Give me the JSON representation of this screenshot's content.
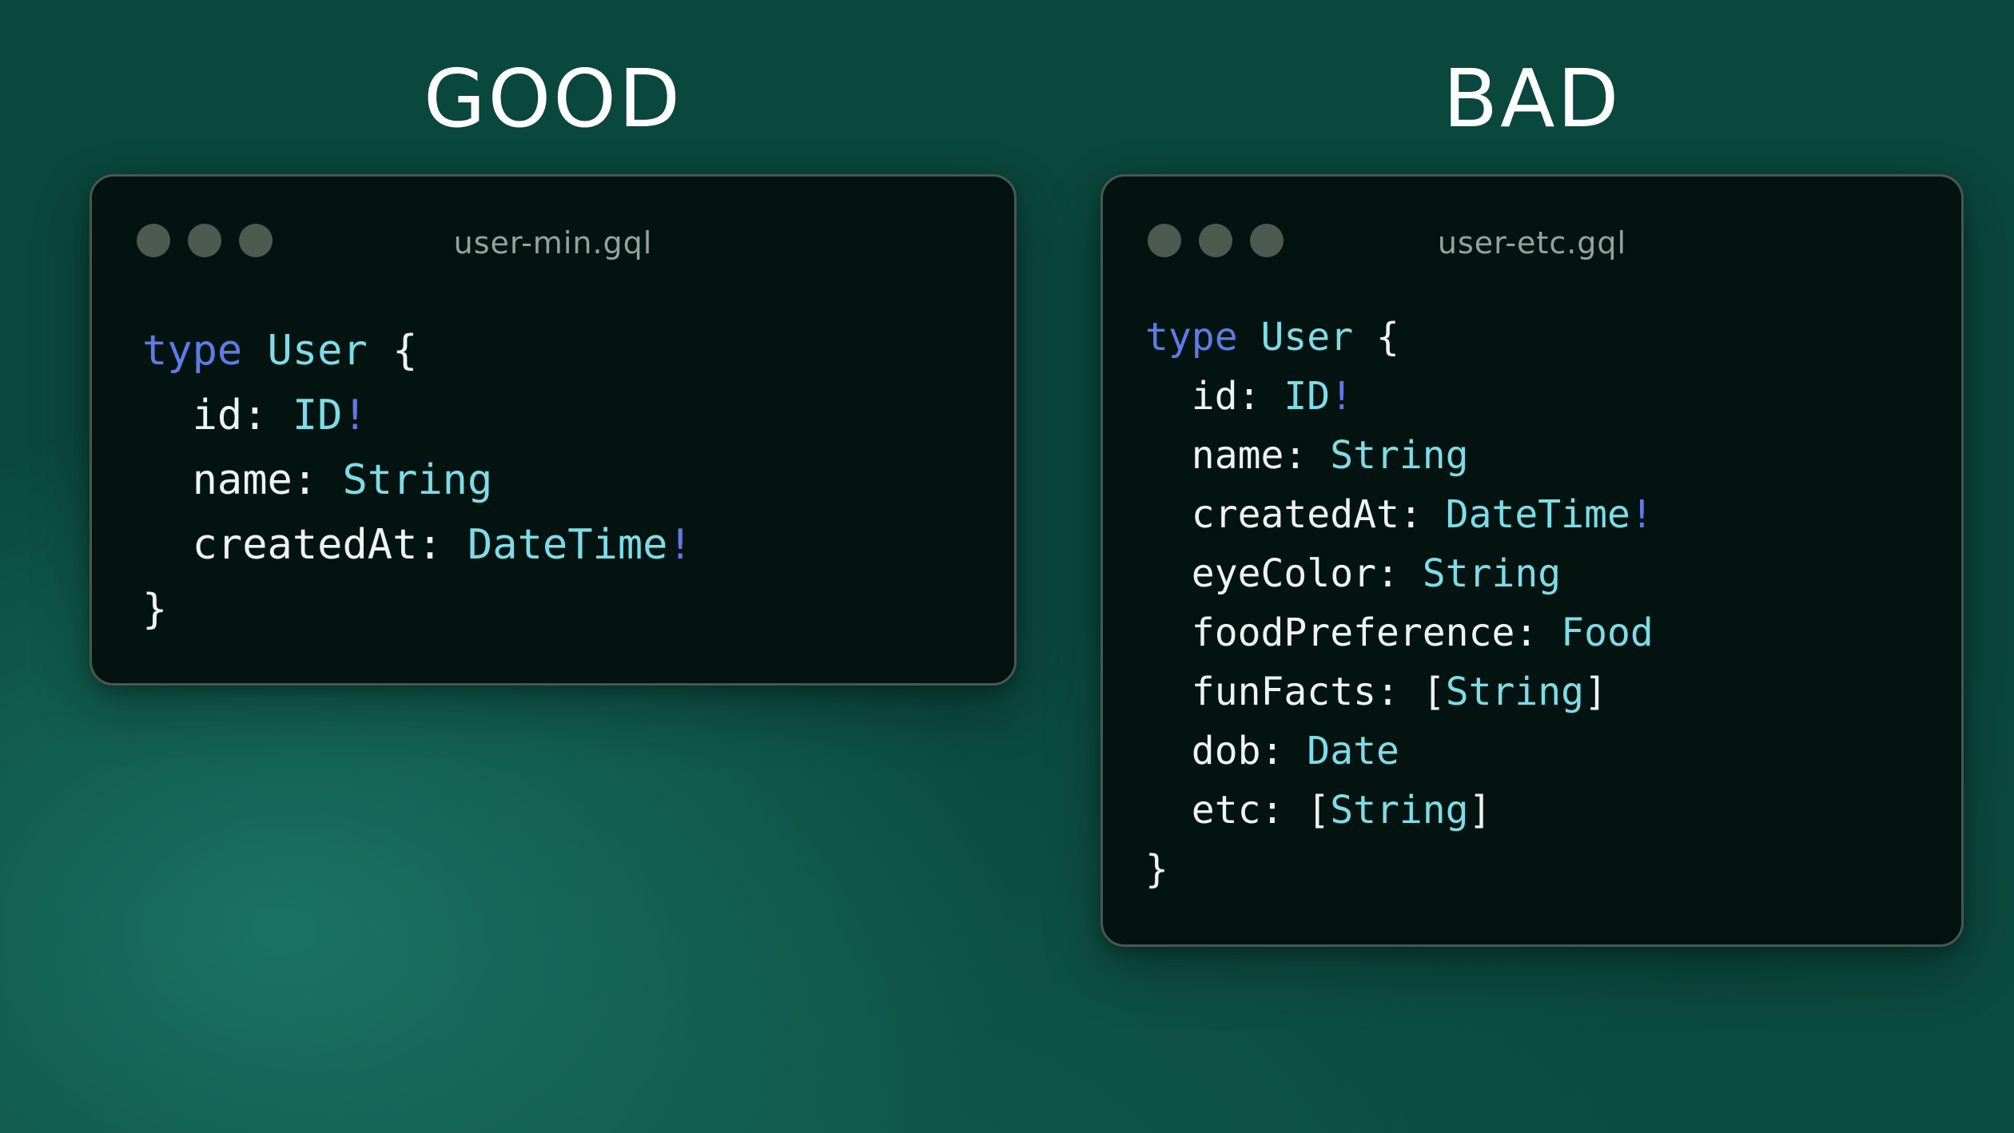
{
  "comparison": {
    "good": {
      "heading": "GOOD",
      "window": {
        "filename": "user-min.gql",
        "dot_count": 3,
        "code": [
          {
            "tokens": [
              {
                "style": "keyword",
                "text": "type"
              },
              {
                "style": "plain",
                "text": " "
              },
              {
                "style": "type",
                "text": "User"
              },
              {
                "style": "plain",
                "text": " {"
              }
            ]
          },
          {
            "tokens": [
              {
                "style": "plain",
                "text": "  id: "
              },
              {
                "style": "type",
                "text": "ID"
              },
              {
                "style": "bang",
                "text": "!"
              }
            ]
          },
          {
            "tokens": [
              {
                "style": "plain",
                "text": "  name: "
              },
              {
                "style": "type",
                "text": "String"
              }
            ]
          },
          {
            "tokens": [
              {
                "style": "plain",
                "text": "  createdAt: "
              },
              {
                "style": "type",
                "text": "DateTime"
              },
              {
                "style": "bang",
                "text": "!"
              }
            ]
          },
          {
            "tokens": [
              {
                "style": "plain",
                "text": "}"
              }
            ]
          }
        ]
      }
    },
    "bad": {
      "heading": "BAD",
      "window": {
        "filename": "user-etc.gql",
        "dot_count": 3,
        "code": [
          {
            "tokens": [
              {
                "style": "keyword",
                "text": "type"
              },
              {
                "style": "plain",
                "text": " "
              },
              {
                "style": "type",
                "text": "User"
              },
              {
                "style": "plain",
                "text": " {"
              }
            ]
          },
          {
            "tokens": [
              {
                "style": "plain",
                "text": "  id: "
              },
              {
                "style": "type",
                "text": "ID"
              },
              {
                "style": "bang",
                "text": "!"
              }
            ]
          },
          {
            "tokens": [
              {
                "style": "plain",
                "text": "  name: "
              },
              {
                "style": "type",
                "text": "String"
              }
            ]
          },
          {
            "tokens": [
              {
                "style": "plain",
                "text": "  createdAt: "
              },
              {
                "style": "type",
                "text": "DateTime"
              },
              {
                "style": "bang",
                "text": "!"
              }
            ]
          },
          {
            "tokens": [
              {
                "style": "plain",
                "text": "  eyeColor: "
              },
              {
                "style": "type",
                "text": "String"
              }
            ]
          },
          {
            "tokens": [
              {
                "style": "plain",
                "text": "  foodPreference: "
              },
              {
                "style": "type",
                "text": "Food"
              }
            ]
          },
          {
            "tokens": [
              {
                "style": "plain",
                "text": "  funFacts: ["
              },
              {
                "style": "type",
                "text": "String"
              },
              {
                "style": "plain",
                "text": "]"
              }
            ]
          },
          {
            "tokens": [
              {
                "style": "plain",
                "text": "  dob: "
              },
              {
                "style": "type",
                "text": "Date"
              }
            ]
          },
          {
            "tokens": [
              {
                "style": "plain",
                "text": "  etc: ["
              },
              {
                "style": "type",
                "text": "String"
              },
              {
                "style": "plain",
                "text": "]"
              }
            ]
          },
          {
            "tokens": [
              {
                "style": "plain",
                "text": "}"
              }
            ]
          }
        ]
      }
    }
  },
  "colors": {
    "heading_text": "#ffffff",
    "background_base": "#0a473c",
    "background_glow": "#1e8472",
    "window_background": "#031410",
    "window_border": "#4a5751",
    "traffic_dot": "#4d5a52",
    "filename_text": "#96a29c",
    "code_plain": "#eef3f2",
    "code_keyword": "#5f7be8",
    "code_typename": "#7edce8",
    "code_bang": "#6577e8"
  }
}
